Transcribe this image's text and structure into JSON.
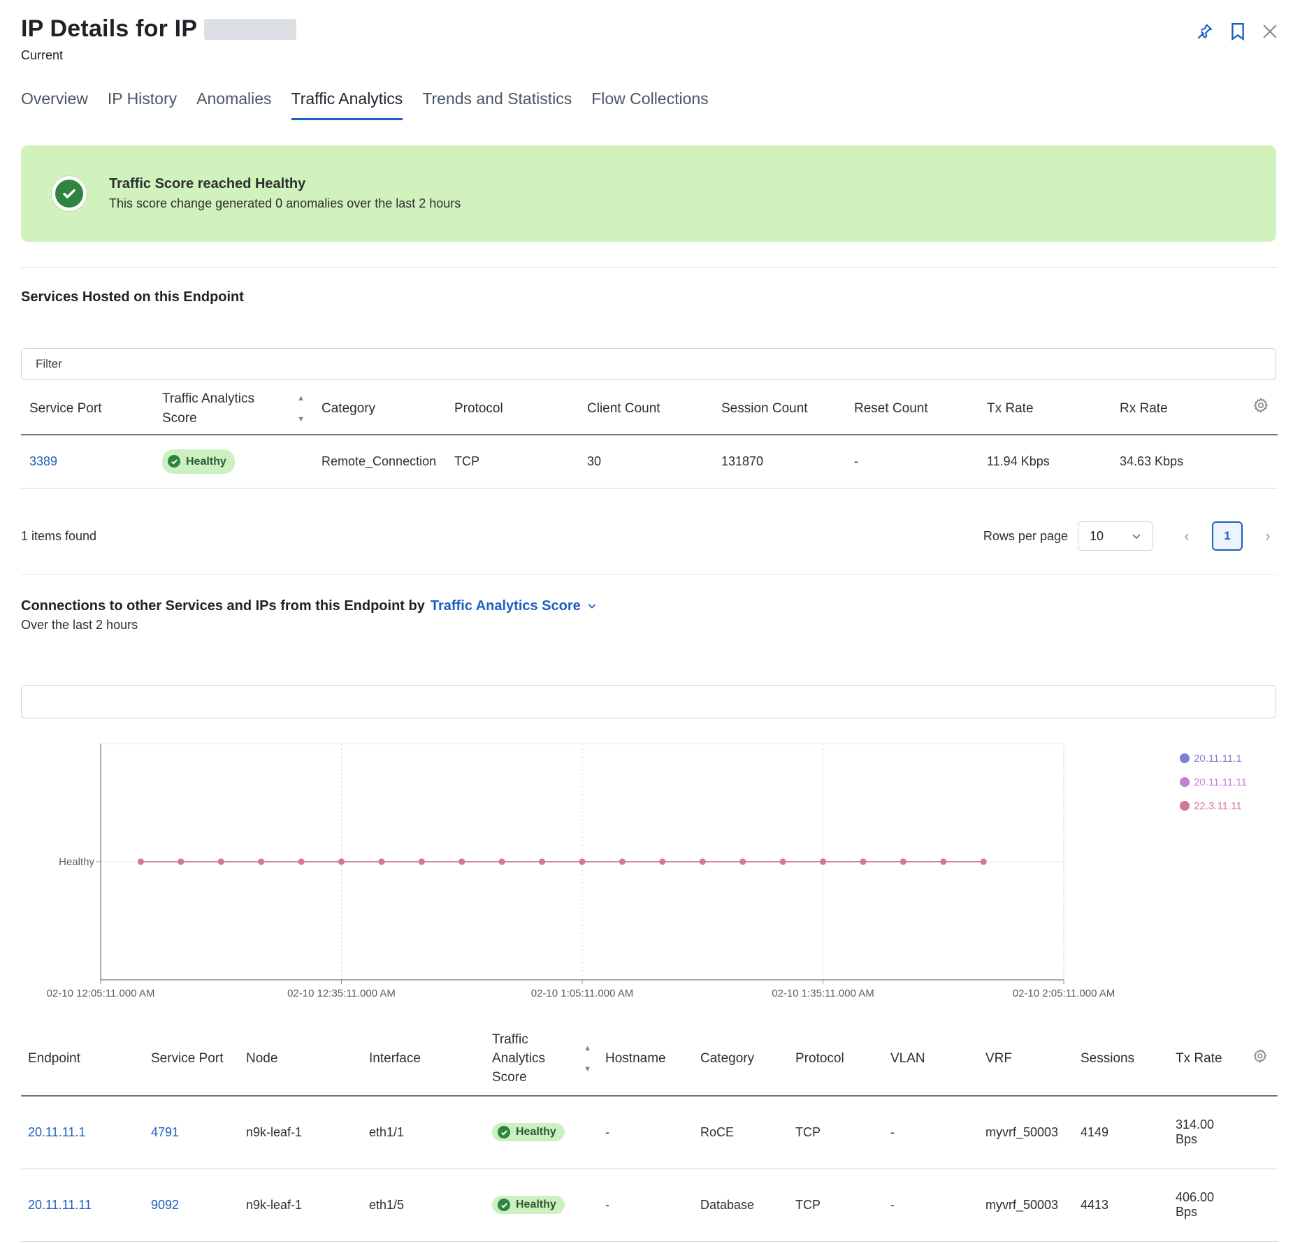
{
  "header": {
    "title_prefix": "IP Details for IP",
    "subtitle": "Current"
  },
  "tabs": [
    {
      "label": "Overview"
    },
    {
      "label": "IP History"
    },
    {
      "label": "Anomalies"
    },
    {
      "label": "Traffic Analytics",
      "active": true
    },
    {
      "label": "Trends and Statistics"
    },
    {
      "label": "Flow Collections"
    }
  ],
  "banner": {
    "title": "Traffic Score reached Healthy",
    "message": "This score change generated 0 anomalies over the last 2 hours",
    "color": "#d1f2bd"
  },
  "services": {
    "title": "Services Hosted on this Endpoint",
    "filter_placeholder": "Filter",
    "columns": [
      "Service Port",
      "Traffic Analytics Score",
      "Category",
      "Protocol",
      "Client Count",
      "Session Count",
      "Reset Count",
      "Tx Rate",
      "Rx Rate"
    ],
    "rows": [
      {
        "service_port": "3389",
        "score": "Healthy",
        "category": "Remote_Connection",
        "protocol": "TCP",
        "client_count": "30",
        "session_count": "131870",
        "reset_count": "-",
        "tx_rate": "11.94 Kbps",
        "rx_rate": "34.63 Kbps"
      }
    ],
    "items_found": "1 items found",
    "rows_per_page_label": "Rows per page",
    "rows_per_page": "10",
    "current_page": "1"
  },
  "connections": {
    "title": "Connections to other Services and IPs from this Endpoint by",
    "metric": "Traffic Analytics Score",
    "subtitle": "Over the last 2 hours"
  },
  "chart_data": {
    "type": "line",
    "y_categories": [
      "Healthy"
    ],
    "x_ticks": [
      "02-10 12:05:11.000 AM",
      "02-10 12:35:11.000 AM",
      "02-10 1:05:11.000 AM",
      "02-10 1:35:11.000 AM",
      "02-10 2:05:11.000 AM"
    ],
    "x_range_minutes": [
      0,
      120
    ],
    "grid": true,
    "legend_position": "top-right",
    "series": [
      {
        "name": "20.11.11.1",
        "color": "#7b7fd6",
        "x_minutes": [
          5,
          10,
          15,
          20,
          25,
          30,
          35,
          40,
          45,
          50,
          55,
          60,
          65,
          70,
          75,
          80,
          85,
          90,
          95,
          100,
          105,
          110
        ],
        "values": [
          "Healthy",
          "Healthy",
          "Healthy",
          "Healthy",
          "Healthy",
          "Healthy",
          "Healthy",
          "Healthy",
          "Healthy",
          "Healthy",
          "Healthy",
          "Healthy",
          "Healthy",
          "Healthy",
          "Healthy",
          "Healthy",
          "Healthy",
          "Healthy",
          "Healthy",
          "Healthy",
          "Healthy",
          "Healthy"
        ]
      },
      {
        "name": "20.11.11.11",
        "color": "#c77fd6",
        "x_minutes": [
          5,
          10,
          15,
          20,
          25,
          30,
          35,
          40,
          45,
          50,
          55,
          60,
          65,
          70,
          75,
          80,
          85,
          90,
          95,
          100,
          105,
          110
        ],
        "values": [
          "Healthy",
          "Healthy",
          "Healthy",
          "Healthy",
          "Healthy",
          "Healthy",
          "Healthy",
          "Healthy",
          "Healthy",
          "Healthy",
          "Healthy",
          "Healthy",
          "Healthy",
          "Healthy",
          "Healthy",
          "Healthy",
          "Healthy",
          "Healthy",
          "Healthy",
          "Healthy",
          "Healthy",
          "Healthy"
        ]
      },
      {
        "name": "22.3.11.11",
        "color": "#d4789a",
        "x_minutes": [
          5,
          10,
          15,
          20,
          25,
          30,
          35,
          40,
          45,
          50,
          55,
          60,
          65,
          70,
          75,
          80,
          85,
          90,
          95,
          100,
          105,
          110
        ],
        "values": [
          "Healthy",
          "Healthy",
          "Healthy",
          "Healthy",
          "Healthy",
          "Healthy",
          "Healthy",
          "Healthy",
          "Healthy",
          "Healthy",
          "Healthy",
          "Healthy",
          "Healthy",
          "Healthy",
          "Healthy",
          "Healthy",
          "Healthy",
          "Healthy",
          "Healthy",
          "Healthy",
          "Healthy",
          "Healthy"
        ]
      }
    ]
  },
  "conn_table": {
    "columns": [
      "Endpoint",
      "Service Port",
      "Node",
      "Interface",
      "Traffic Analytics Score",
      "Hostname",
      "Category",
      "Protocol",
      "VLAN",
      "VRF",
      "Sessions",
      "Tx Rate"
    ],
    "rows": [
      {
        "endpoint": "20.11.11.1",
        "service_port": "4791",
        "node": "n9k-leaf-1",
        "interface": "eth1/1",
        "score": "Healthy",
        "hostname": "-",
        "category": "RoCE",
        "protocol": "TCP",
        "vlan": "-",
        "vrf": "myvrf_50003",
        "sessions": "4149",
        "tx_rate": "314.00 Bps"
      },
      {
        "endpoint": "20.11.11.11",
        "service_port": "9092",
        "node": "n9k-leaf-1",
        "interface": "eth1/5",
        "score": "Healthy",
        "hostname": "-",
        "category": "Database",
        "protocol": "TCP",
        "vlan": "-",
        "vrf": "myvrf_50003",
        "sessions": "4413",
        "tx_rate": "406.00 Bps"
      }
    ]
  }
}
